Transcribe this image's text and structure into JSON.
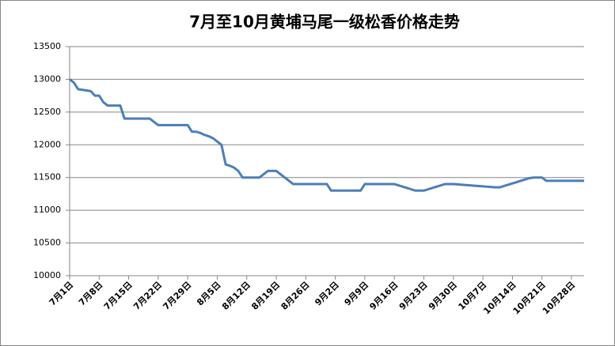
{
  "chart_data": {
    "type": "line",
    "title": "7月至10月黄埔马尾一级松香价格走势",
    "categories": [
      "7月1日",
      null,
      null,
      null,
      null,
      null,
      null,
      "7月8日",
      null,
      null,
      null,
      null,
      null,
      null,
      "7月15日",
      null,
      null,
      null,
      null,
      null,
      null,
      "7月22日",
      null,
      null,
      null,
      null,
      null,
      null,
      "7月29日",
      null,
      null,
      null,
      null,
      null,
      null,
      "8月5日",
      null,
      null,
      null,
      null,
      null,
      null,
      "8月12日",
      null,
      null,
      null,
      null,
      null,
      null,
      "8月19日",
      null,
      null,
      null,
      null,
      null,
      null,
      "8月26日",
      null,
      null,
      null,
      null,
      null,
      null,
      "9月2日",
      null,
      null,
      null,
      null,
      null,
      null,
      "9月9日",
      null,
      null,
      null,
      null,
      null,
      null,
      "9月16日",
      null,
      null,
      null,
      null,
      null,
      null,
      "9月23日",
      null,
      null,
      null,
      null,
      null,
      null,
      "9月30日",
      null,
      null,
      null,
      null,
      null,
      null,
      "10月7日",
      null,
      null,
      null,
      null,
      null,
      null,
      "10月14日",
      null,
      null,
      null,
      null,
      null,
      null,
      "10月21日",
      null,
      null,
      null,
      null,
      null,
      null,
      "10月28日",
      null,
      null,
      null
    ],
    "values": [
      13000,
      12950,
      12850,
      12840,
      12830,
      12820,
      12750,
      12750,
      12650,
      12600,
      12600,
      12600,
      12600,
      12400,
      12400,
      12400,
      12400,
      12400,
      12400,
      12400,
      12350,
      12300,
      12300,
      12300,
      12300,
      12300,
      12300,
      12300,
      12300,
      12200,
      12200,
      12180,
      12150,
      12130,
      12100,
      12050,
      12000,
      11700,
      11680,
      11650,
      11600,
      11500,
      11500,
      11500,
      11500,
      11500,
      11550,
      11600,
      11600,
      11600,
      11550,
      11500,
      11450,
      11400,
      11400,
      11400,
      11400,
      11400,
      11400,
      11400,
      11400,
      11400,
      11300,
      11300,
      11300,
      11300,
      11300,
      11300,
      11300,
      11300,
      11400,
      11400,
      11400,
      11400,
      11400,
      11400,
      11400,
      11400,
      11380,
      11360,
      11340,
      11320,
      11300,
      11300,
      11300,
      11320,
      11340,
      11360,
      11380,
      11400,
      11400,
      11400,
      11395,
      11390,
      11385,
      11380,
      11375,
      11370,
      11365,
      11360,
      11355,
      11350,
      11350,
      11370,
      11390,
      11410,
      11430,
      11450,
      11470,
      11490,
      11500,
      11500,
      11500,
      11450,
      11450,
      11450,
      11450,
      11450,
      11450,
      11450,
      11450,
      11450,
      11450
    ],
    "color": "#4a7ebb",
    "ylim": [
      10000,
      13500
    ],
    "yticks": [
      10000,
      10500,
      11000,
      11500,
      12000,
      12500,
      13000,
      13500
    ],
    "grid": true
  }
}
